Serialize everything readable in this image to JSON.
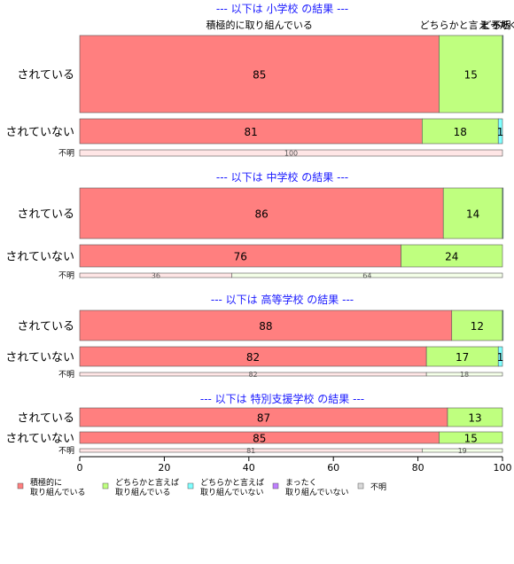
{
  "chart_data": {
    "type": "bar",
    "orientation": "horizontal",
    "stacked": true,
    "xlim": [
      0,
      100
    ],
    "x_ticks": [
      "0",
      "20",
      "40",
      "60",
      "80",
      "100"
    ],
    "series": [
      {
        "name": "積極的に\n取り組んでいる",
        "color": "#ff7f7f"
      },
      {
        "name": "どちらかと言えば\n取り組んでいる",
        "color": "#bfff7f"
      },
      {
        "name": "どちらかと言えば\n取り組んでいない",
        "color": "#7fffff"
      },
      {
        "name": "まったく\n取り組んでいない",
        "color": "#bf7fff"
      },
      {
        "name": "不明",
        "color": "#d9d9d9"
      }
    ],
    "top_labels": [
      {
        "text": "積極的に取り組んでいる",
        "x": 42.5
      },
      {
        "text": "どちらかと言え",
        "x": 88.5
      },
      {
        "text": "どちら",
        "x": 98.5
      },
      {
        "text": "まったく",
        "x": 99.2
      },
      {
        "text": "不明",
        "x": 99.7
      }
    ],
    "panels": [
      {
        "title": "--- 以下は 小学校 の結果 ---",
        "rows": [
          {
            "category": "されている",
            "values": [
              85,
              15,
              0.3,
              0,
              0
            ],
            "labels": [
              "85",
              "15",
              "",
              "",
              ""
            ]
          },
          {
            "category": "されていない",
            "values": [
              81,
              18,
              1,
              0,
              0
            ],
            "labels": [
              "81",
              "18",
              "1",
              "",
              ""
            ]
          },
          {
            "category": "不明",
            "values": [
              100,
              0,
              0,
              0,
              0
            ],
            "labels": [
              "100",
              "",
              "",
              "",
              ""
            ]
          }
        ]
      },
      {
        "title": "--- 以下は 中学校 の結果 ---",
        "rows": [
          {
            "category": "されている",
            "values": [
              86,
              14,
              0.4,
              0,
              0
            ],
            "labels": [
              "86",
              "14",
              "",
              "",
              ""
            ]
          },
          {
            "category": "されていない",
            "values": [
              76,
              24,
              0,
              0,
              0
            ],
            "labels": [
              "76",
              "24",
              "",
              "",
              ""
            ]
          },
          {
            "category": "不明",
            "values": [
              36,
              64,
              0,
              0,
              0
            ],
            "labels": [
              "36",
              "64",
              "",
              "",
              ""
            ]
          }
        ]
      },
      {
        "title": "--- 以下は 高等学校 の結果 ---",
        "rows": [
          {
            "category": "されている",
            "values": [
              88,
              12,
              0.5,
              0,
              0
            ],
            "labels": [
              "88",
              "12",
              "",
              "",
              ""
            ]
          },
          {
            "category": "されていない",
            "values": [
              82,
              17,
              1,
              0,
              0
            ],
            "labels": [
              "82",
              "17",
              "1",
              "",
              ""
            ]
          },
          {
            "category": "不明",
            "values": [
              82,
              18,
              0,
              0,
              0
            ],
            "labels": [
              "82",
              "18",
              "",
              "",
              ""
            ]
          }
        ]
      },
      {
        "title": "--- 以下は 特別支援学校 の結果 ---",
        "rows": [
          {
            "category": "されている",
            "values": [
              87,
              13,
              0,
              0,
              0
            ],
            "labels": [
              "87",
              "13",
              "",
              "",
              ""
            ]
          },
          {
            "category": "されていない",
            "values": [
              85,
              15,
              0,
              0,
              0
            ],
            "labels": [
              "85",
              "15",
              "",
              "",
              ""
            ]
          },
          {
            "category": "不明",
            "values": [
              81,
              19,
              0,
              0,
              0
            ],
            "labels": [
              "81",
              "19",
              "",
              "",
              ""
            ]
          }
        ]
      }
    ]
  }
}
